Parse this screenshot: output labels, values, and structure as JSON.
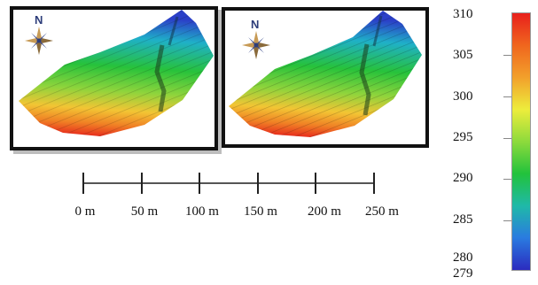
{
  "panels": [
    {
      "compass_label": "N"
    },
    {
      "compass_label": "N"
    }
  ],
  "scale_bar": {
    "labels": [
      "0 m",
      "50 m",
      "100 m",
      "150 m",
      "200 m",
      "250 m"
    ]
  },
  "colorbar": {
    "labels": [
      "310",
      "305",
      "300",
      "295",
      "290",
      "285",
      "280",
      "279"
    ],
    "colors": [
      "#e8201c",
      "#f0661e",
      "#f2a02b",
      "#eded3c",
      "#8dda3c",
      "#22c23c",
      "#1fb9a8",
      "#2a7be0",
      "#2b2bbf"
    ]
  }
}
